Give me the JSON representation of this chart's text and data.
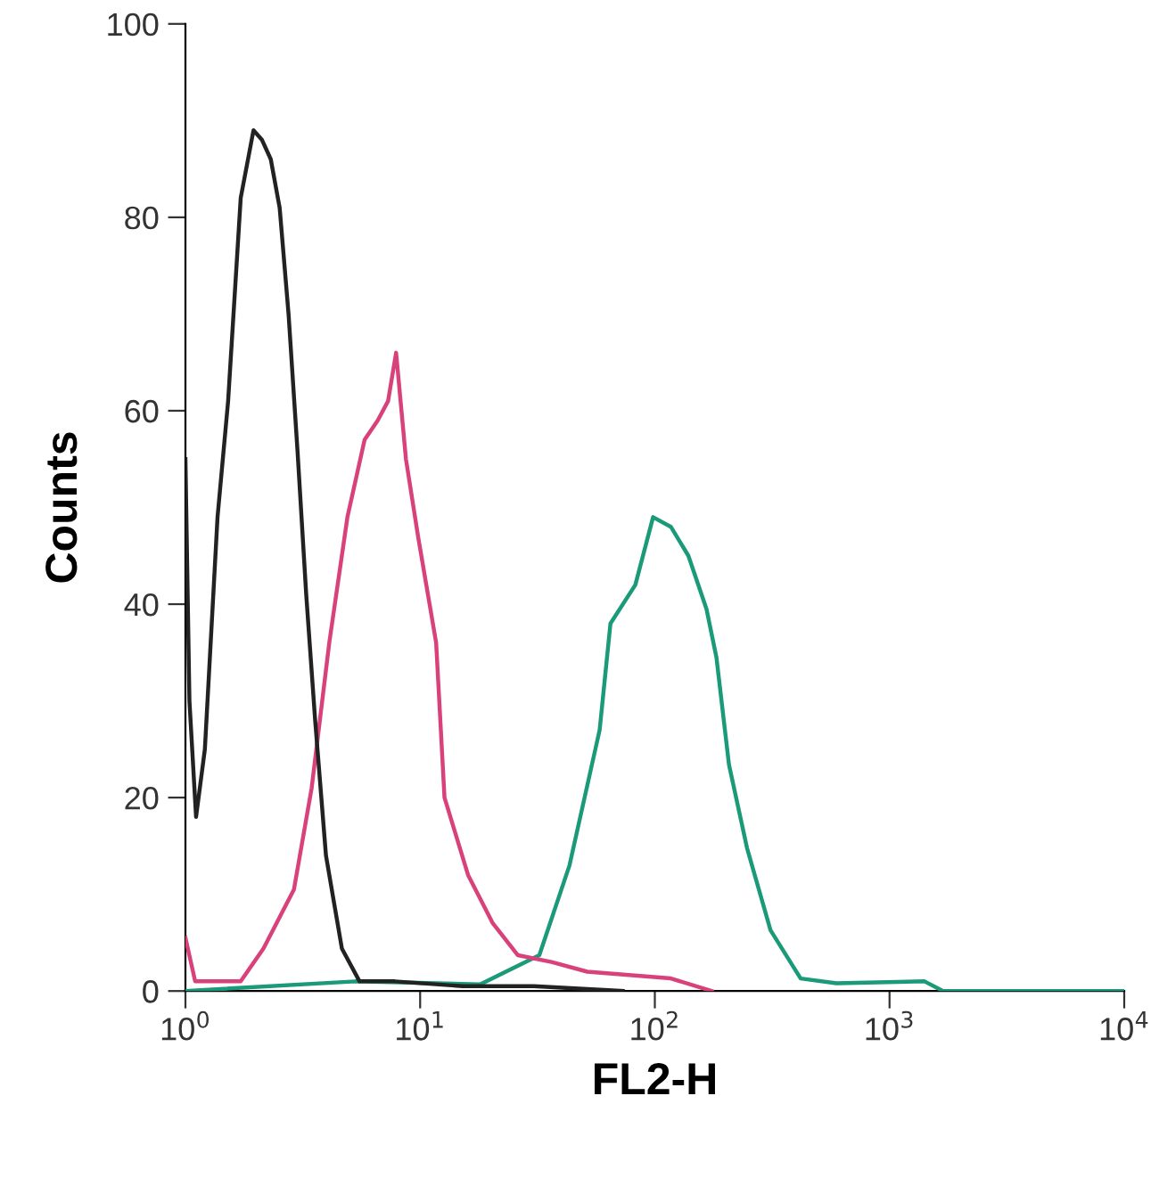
{
  "chart_data": {
    "type": "line",
    "xlabel": "FL2-H",
    "ylabel": "Counts",
    "log": "x",
    "xlim": [
      1,
      10000
    ],
    "ylim": [
      0,
      100
    ],
    "xticks": [
      {
        "value": 1,
        "label": "10$^{0}$"
      },
      {
        "value": 10,
        "label": "10$^{1}$"
      },
      {
        "value": 100,
        "label": "10$^{2}$"
      },
      {
        "value": 1000,
        "label": "10$^{3}$"
      },
      {
        "value": 10000,
        "label": "10$^{4}$"
      }
    ],
    "yticks": [
      0,
      20,
      40,
      60,
      80,
      100
    ],
    "grid": false,
    "legend": false,
    "series": [
      {
        "color": "#222222",
        "x": [
          1,
          1.04,
          1.11,
          1.21,
          1.37,
          1.52,
          1.72,
          1.95,
          2.12,
          2.31,
          2.52,
          2.75,
          3.0,
          3.27,
          3.57,
          3.97,
          4.64,
          5.52,
          7.8,
          15.2,
          30.5,
          73
        ],
        "values": [
          55,
          30,
          18,
          25,
          49,
          61,
          82,
          89,
          88,
          86,
          81,
          70,
          56,
          41,
          28,
          14,
          4.4,
          1,
          1,
          0.5,
          0.5,
          0
        ]
      },
      {
        "color": "#d9417a",
        "x": [
          1,
          1.1,
          1.72,
          2.15,
          2.9,
          3.45,
          4.1,
          4.9,
          5.8,
          6.6,
          7.3,
          7.9,
          8.7,
          9.8,
          11.7,
          12.7,
          16.0,
          20.4,
          26.1,
          36.3,
          51.5,
          117,
          175
        ],
        "values": [
          5.5,
          1,
          1,
          4.4,
          10.5,
          21,
          36,
          49,
          57,
          59,
          61,
          66,
          55,
          47,
          36,
          20,
          12,
          7,
          3.7,
          3,
          2,
          1.3,
          0
        ]
      },
      {
        "color": "#1a9a78",
        "x": [
          1,
          5.3,
          18.1,
          32.2,
          43.3,
          58.2,
          64.7,
          82.6,
          98.3,
          117,
          139,
          166,
          183,
          207,
          247,
          311,
          418,
          594,
          1410,
          1690,
          10000
        ],
        "values": [
          0,
          1,
          0.7,
          3.7,
          13,
          27,
          38,
          42,
          49,
          48,
          45,
          39.5,
          34.5,
          23.4,
          14.8,
          6.3,
          1.3,
          0.8,
          1,
          0,
          0
        ]
      }
    ]
  }
}
